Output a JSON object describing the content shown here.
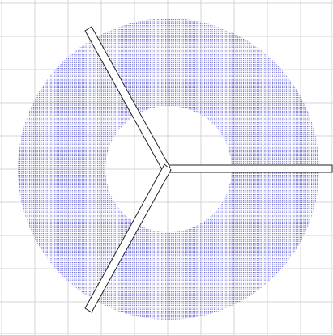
{
  "colors": {
    "background": "#ffffff",
    "grid": "#d4d4d4",
    "annulus_dot": "#5b5bd6",
    "arm_fill": "#ffffff",
    "arm_stroke": "#222222"
  },
  "annulus": {
    "pattern": "fine-dot-stipple"
  },
  "arms": [
    {
      "name": "arm-east",
      "direction": "right"
    },
    {
      "name": "arm-upper-left",
      "direction": "upper-left"
    },
    {
      "name": "arm-lower-left",
      "direction": "lower-left"
    }
  ]
}
